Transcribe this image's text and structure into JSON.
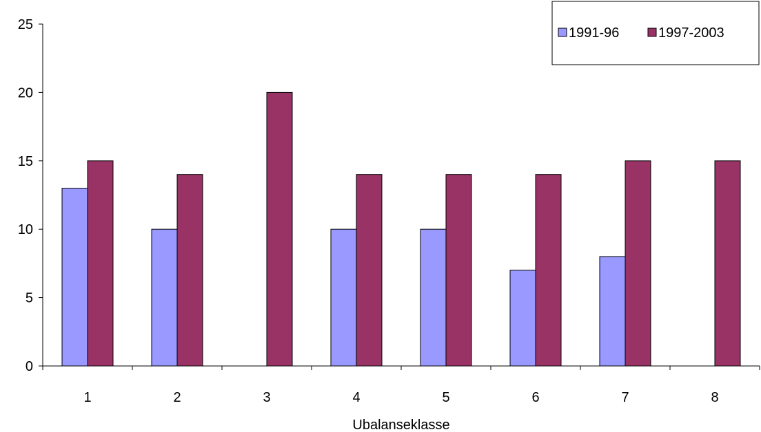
{
  "chart_data": {
    "type": "bar",
    "categories": [
      "1",
      "2",
      "3",
      "4",
      "5",
      "6",
      "7",
      "8"
    ],
    "series": [
      {
        "name": "1991-96",
        "values": [
          13,
          10,
          0,
          10,
          10,
          7,
          8,
          0
        ],
        "color": "#9999ff"
      },
      {
        "name": "1997-2003",
        "values": [
          15,
          14,
          20,
          14,
          14,
          14,
          15,
          15
        ],
        "color": "#993366"
      }
    ],
    "xlabel": "Ubalanseklasse",
    "ylabel": "",
    "ylim": [
      0,
      25
    ],
    "yticks": [
      "0",
      "5",
      "10",
      "15",
      "20",
      "25"
    ],
    "grid": false,
    "legend_position": "top-right"
  }
}
